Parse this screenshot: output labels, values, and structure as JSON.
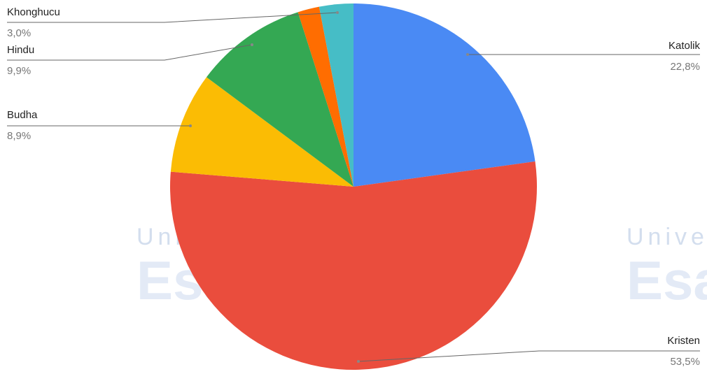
{
  "chart_data": {
    "type": "pie",
    "categories": [
      "Katolik",
      "Kristen",
      "Budha",
      "Hindu",
      null,
      "Khonghucu"
    ],
    "values": [
      22.8,
      53.5,
      8.9,
      9.9,
      1.9,
      3.0
    ],
    "value_labels": [
      "22,8%",
      "53,5%",
      "8,9%",
      "9,9%",
      null,
      "3,0%"
    ],
    "colors": [
      "#4a8af4",
      "#ea4d3d",
      "#fbbc04",
      "#34a853",
      "#ff6d01",
      "#46bdc6"
    ],
    "watermark": {
      "line1": "Universitas",
      "line2": "Esa Unggul"
    }
  }
}
